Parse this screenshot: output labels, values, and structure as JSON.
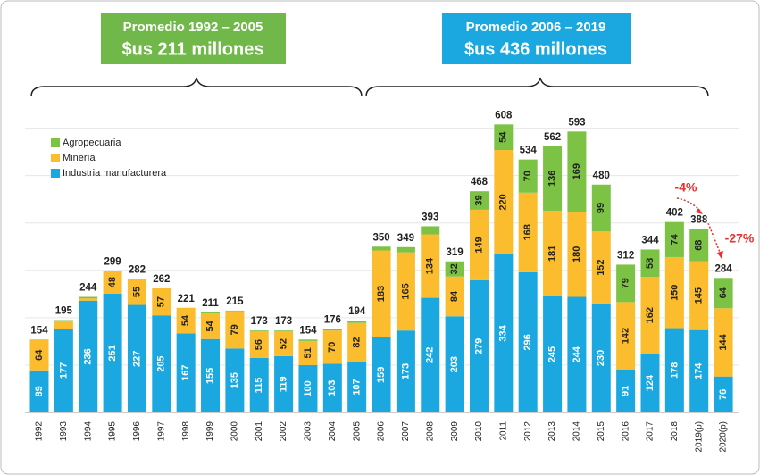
{
  "chart_data": {
    "type": "stacked_bar",
    "categories": [
      "1992",
      "1993",
      "1994",
      "1995",
      "1996",
      "1997",
      "1998",
      "1999",
      "2000",
      "2001",
      "2002",
      "2003",
      "2004",
      "2005",
      "2006",
      "2007",
      "2008",
      "2009",
      "2010",
      "2011",
      "2012",
      "2013",
      "2014",
      "2015",
      "2016",
      "2017",
      "2018",
      "2019(p)",
      "2020(p)"
    ],
    "series": [
      {
        "name": "Industria manufacturera",
        "color": "#1ba8e0",
        "values": [
          89,
          177,
          236,
          251,
          227,
          205,
          167,
          155,
          135,
          115,
          119,
          100,
          103,
          107,
          159,
          173,
          242,
          203,
          279,
          334,
          296,
          245,
          244,
          230,
          91,
          124,
          178,
          174,
          76
        ]
      },
      {
        "name": "Minería",
        "color": "#fbbc2d",
        "values": [
          64,
          17,
          5,
          48,
          55,
          57,
          54,
          54,
          79,
          56,
          52,
          51,
          70,
          82,
          183,
          165,
          134,
          84,
          149,
          220,
          168,
          181,
          180,
          152,
          142,
          162,
          150,
          145,
          144
        ]
      },
      {
        "name": "Agropecuaria",
        "color": "#7cc245",
        "values": [
          1,
          1,
          3,
          0,
          0,
          0,
          0,
          2,
          1,
          2,
          2,
          3,
          3,
          5,
          8,
          11,
          17,
          32,
          39,
          54,
          70,
          136,
          169,
          99,
          79,
          58,
          74,
          68,
          64
        ]
      }
    ],
    "totals": [
      154,
      195,
      244,
      299,
      282,
      262,
      221,
      211,
      215,
      173,
      173,
      154,
      176,
      194,
      350,
      349,
      393,
      319,
      468,
      608,
      534,
      562,
      593,
      480,
      312,
      344,
      402,
      388,
      284
    ],
    "ylim": [
      0,
      620
    ],
    "yticks": [
      0,
      100,
      200,
      300,
      400,
      500,
      600
    ],
    "grid": true,
    "annotations": {
      "left_title": "Promedio 1992 – 2005",
      "left_value": "$us 211 millones",
      "right_title": "Promedio 2006 – 2019",
      "right_value": "$us 436 millones",
      "change_2019": "-4%",
      "change_2020": "-27%"
    }
  }
}
